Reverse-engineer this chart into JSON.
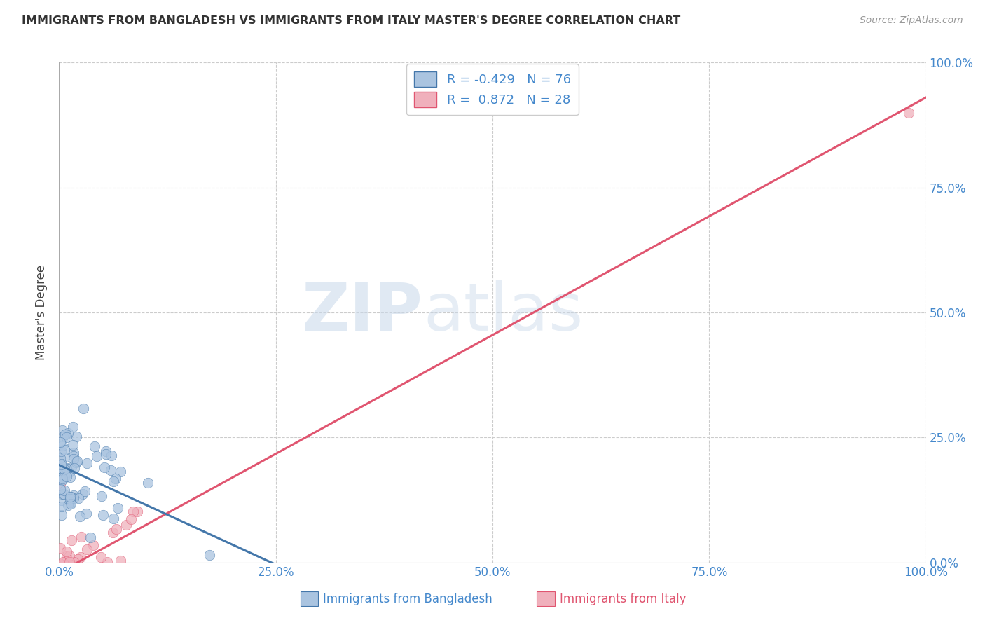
{
  "title": "IMMIGRANTS FROM BANGLADESH VS IMMIGRANTS FROM ITALY MASTER'S DEGREE CORRELATION CHART",
  "source": "Source: ZipAtlas.com",
  "ylabel": "Master's Degree",
  "watermark_zip": "ZIP",
  "watermark_atlas": "atlas",
  "R_bangladesh": -0.429,
  "N_bangladesh": 76,
  "R_italy": 0.872,
  "N_italy": 28,
  "color_bangladesh": "#aac4e0",
  "color_italy": "#f0b0bc",
  "line_color_bangladesh": "#4477aa",
  "line_color_italy": "#e05570",
  "tick_color": "#4488cc",
  "background_color": "#ffffff",
  "grid_color": "#cccccc",
  "xlim": [
    0.0,
    1.0
  ],
  "ylim": [
    0.0,
    1.0
  ],
  "xticks": [
    0.0,
    0.25,
    0.5,
    0.75,
    1.0
  ],
  "yticks": [
    0.0,
    0.25,
    0.5,
    0.75,
    1.0
  ],
  "xticklabels": [
    "0.0%",
    "25.0%",
    "50.0%",
    "75.0%",
    "100.0%"
  ],
  "yticklabels": [
    "0.0%",
    "25.0%",
    "50.0%",
    "75.0%",
    "100.0%"
  ],
  "legend_label_b": "R = -0.429   N = 76",
  "legend_label_i": "R =  0.872   N = 28",
  "bottom_label_b": "Immigrants from Bangladesh",
  "bottom_label_i": "Immigrants from Italy",
  "italy_line_x0": 0.0,
  "italy_line_y0": -0.02,
  "italy_line_x1": 1.0,
  "italy_line_y1": 0.93,
  "bangladesh_line_x0": 0.0,
  "bangladesh_line_y0": 0.195,
  "bangladesh_line_x1": 0.27,
  "bangladesh_line_y1": -0.02
}
